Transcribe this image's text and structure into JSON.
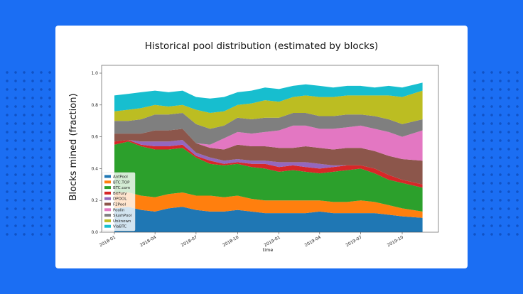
{
  "chart_data": {
    "type": "area",
    "stacked": true,
    "title": "Historical pool distribution (estimated by blocks)",
    "xlabel": "time",
    "ylabel": "Blocks mined (fraction)",
    "ylim": [
      0,
      1.05
    ],
    "yticks": [
      "0.0",
      "0.2",
      "0.4",
      "0.6",
      "0.8",
      "1.0"
    ],
    "xticks": [
      "2018-01",
      "2018-04",
      "2018-07",
      "2018-10",
      "2019-01",
      "2019-04",
      "2019-07",
      "2019-10"
    ],
    "legend_position": "lower-left",
    "grid": false,
    "x": [
      "2018-01-01",
      "2018-02-01",
      "2018-03-01",
      "2018-04-01",
      "2018-05-01",
      "2018-06-01",
      "2018-07-01",
      "2018-08-01",
      "2018-09-01",
      "2018-10-01",
      "2018-11-01",
      "2018-12-01",
      "2019-01-01",
      "2019-02-01",
      "2019-03-01",
      "2019-04-01",
      "2019-05-01",
      "2019-06-01",
      "2019-07-01",
      "2019-08-01",
      "2019-09-01",
      "2019-10-01",
      "2019-11-15"
    ],
    "series": [
      {
        "name": "AntPool",
        "color": "#1f77b4",
        "values": [
          0.15,
          0.16,
          0.14,
          0.13,
          0.15,
          0.16,
          0.14,
          0.13,
          0.13,
          0.14,
          0.13,
          0.12,
          0.12,
          0.12,
          0.12,
          0.13,
          0.12,
          0.12,
          0.12,
          0.12,
          0.11,
          0.1,
          0.09
        ]
      },
      {
        "name": "BTC.TOP",
        "color": "#ff7f0e",
        "values": [
          0.1,
          0.09,
          0.09,
          0.09,
          0.09,
          0.09,
          0.09,
          0.1,
          0.09,
          0.09,
          0.08,
          0.08,
          0.08,
          0.08,
          0.08,
          0.07,
          0.07,
          0.07,
          0.08,
          0.07,
          0.06,
          0.05,
          0.04
        ]
      },
      {
        "name": "BTC.com",
        "color": "#2ca02c",
        "values": [
          0.3,
          0.32,
          0.31,
          0.3,
          0.28,
          0.28,
          0.24,
          0.2,
          0.2,
          0.2,
          0.2,
          0.2,
          0.18,
          0.19,
          0.18,
          0.17,
          0.19,
          0.2,
          0.2,
          0.18,
          0.16,
          0.16,
          0.15
        ]
      },
      {
        "name": "BitFury",
        "color": "#d62728",
        "values": [
          0.02,
          0.01,
          0.01,
          0.02,
          0.02,
          0.02,
          0.01,
          0.02,
          0.01,
          0.01,
          0.02,
          0.03,
          0.03,
          0.03,
          0.03,
          0.03,
          0.03,
          0.03,
          0.02,
          0.03,
          0.03,
          0.02,
          0.02
        ]
      },
      {
        "name": "DPOOL",
        "color": "#9467bd",
        "values": [
          0,
          0,
          0.02,
          0.03,
          0.03,
          0.03,
          0.02,
          0.02,
          0.02,
          0.02,
          0.02,
          0.02,
          0.03,
          0.02,
          0.03,
          0.03,
          0.01,
          0,
          0,
          0,
          0,
          0,
          0
        ]
      },
      {
        "name": "F2Pool",
        "color": "#8c564b",
        "values": [
          0.05,
          0.04,
          0.05,
          0.07,
          0.07,
          0.07,
          0.06,
          0.06,
          0.07,
          0.09,
          0.09,
          0.09,
          0.09,
          0.09,
          0.1,
          0.1,
          0.1,
          0.11,
          0.11,
          0.11,
          0.12,
          0.13,
          0.15
        ]
      },
      {
        "name": "Poolin",
        "color": "#e377c2",
        "values": [
          0,
          0,
          0,
          0,
          0,
          0,
          0,
          0.02,
          0.07,
          0.08,
          0.08,
          0.09,
          0.11,
          0.14,
          0.13,
          0.12,
          0.13,
          0.13,
          0.14,
          0.14,
          0.15,
          0.14,
          0.19
        ]
      },
      {
        "name": "SlushPool",
        "color": "#7f7f7f",
        "values": [
          0.08,
          0.08,
          0.09,
          0.1,
          0.1,
          0.1,
          0.12,
          0.1,
          0.08,
          0.09,
          0.09,
          0.09,
          0.08,
          0.08,
          0.08,
          0.08,
          0.08,
          0.08,
          0.07,
          0.08,
          0.08,
          0.08,
          0.07
        ]
      },
      {
        "name": "Unknown",
        "color": "#bcbd22",
        "values": [
          0.06,
          0.07,
          0.07,
          0.06,
          0.05,
          0.05,
          0.09,
          0.1,
          0.09,
          0.08,
          0.1,
          0.11,
          0.1,
          0.1,
          0.11,
          0.12,
          0.12,
          0.12,
          0.12,
          0.13,
          0.15,
          0.17,
          0.18
        ]
      },
      {
        "name": "ViaBTC",
        "color": "#17becf",
        "values": [
          0.1,
          0.1,
          0.1,
          0.09,
          0.09,
          0.09,
          0.08,
          0.09,
          0.09,
          0.08,
          0.08,
          0.08,
          0.08,
          0.07,
          0.07,
          0.07,
          0.06,
          0.06,
          0.06,
          0.05,
          0.06,
          0.06,
          0.05
        ]
      }
    ]
  }
}
